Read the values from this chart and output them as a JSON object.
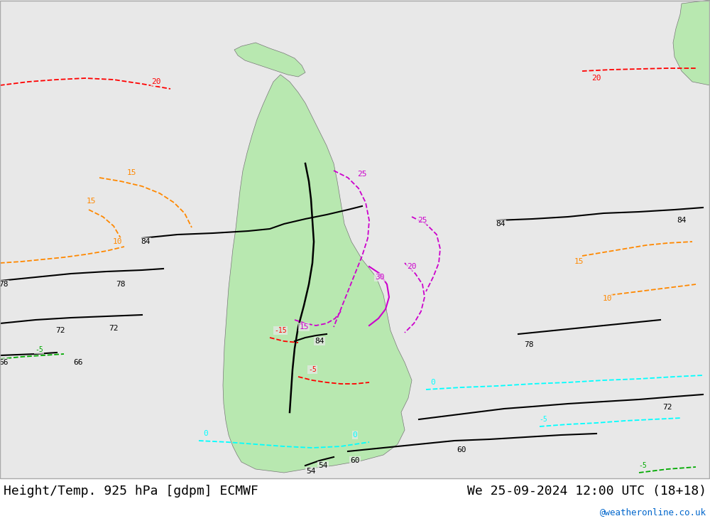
{
  "title_left": "Height/Temp. 925 hPa [gdpm] ECMWF",
  "title_right": "We 25-09-2024 12:00 UTC (18+18)",
  "watermark": "@weatheronline.co.uk",
  "bg_color": "#e8e8e8",
  "land_color": "#b8e8b0",
  "map_border_color": "#888888",
  "font_size_title": 13,
  "font_size_watermark": 10
}
